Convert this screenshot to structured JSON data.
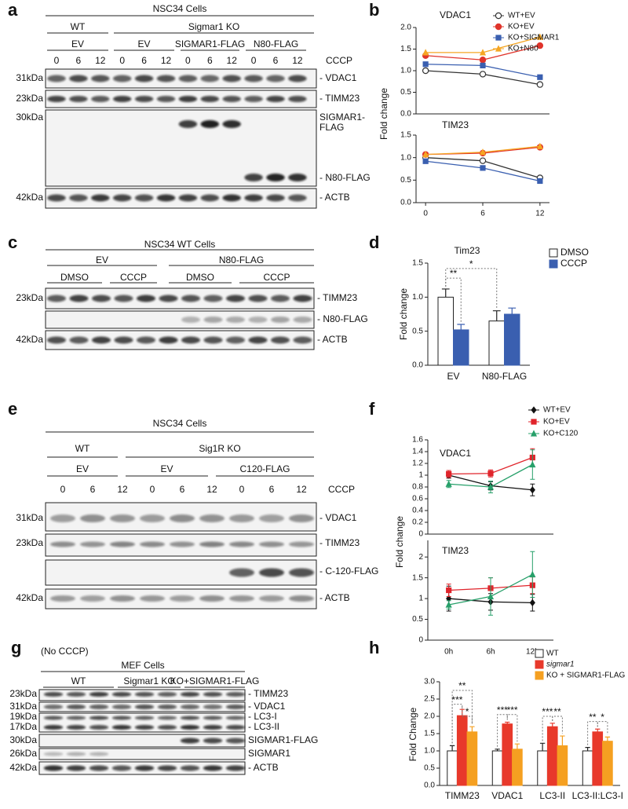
{
  "blots": [
    {
      "letter": "a",
      "title": "NSC34 Cells",
      "groups": [
        "WT",
        "Sigmar1 KO"
      ],
      "subgroups": [
        "EV",
        "EV",
        "SIGMAR1-FLAG",
        "N80-FLAG"
      ],
      "lanes": [
        "0",
        "6",
        "12",
        "0",
        "6",
        "12",
        "0",
        "6",
        "12",
        "0",
        "6",
        "12"
      ],
      "treatment": "CCCP",
      "markers": [
        "31kDa",
        "23kDa",
        "30kDa",
        "42kDa"
      ],
      "proteins": [
        "- VDAC1",
        "- TIMM23",
        "SIGMAR1-",
        "FLAG",
        "- N80-FLAG",
        "- ACTB"
      ]
    },
    {
      "letter": "c",
      "title": "NSC34 WT Cells",
      "groups": [
        "EV",
        "N80-FLAG"
      ],
      "subgroups": [
        "DMSO",
        "CCCP",
        "DMSO",
        "CCCP"
      ],
      "markers": [
        "23kDa",
        "42kDa"
      ],
      "proteins": [
        "- TIMM23",
        "- N80-FLAG",
        "- ACTB"
      ]
    },
    {
      "letter": "e",
      "title": "NSC34 Cells",
      "groups": [
        "WT",
        "Sig1R KO"
      ],
      "subgroups": [
        "EV",
        "EV",
        "C120-FLAG"
      ],
      "lanes": [
        "0",
        "6",
        "12",
        "0",
        "6",
        "12",
        "0",
        "6",
        "12"
      ],
      "treatment": "CCCP",
      "markers": [
        "31kDa",
        "23kDa",
        "42kDa"
      ],
      "proteins": [
        "- VDAC1",
        "- TIMM23",
        "- C-120-FLAG",
        "- ACTB"
      ]
    },
    {
      "letter": "g",
      "note": "(No CCCP)",
      "title": "MEF Cells",
      "subgroups": [
        "WT",
        "Sigmar1 KO",
        "KO+SIGMAR1-FLAG"
      ],
      "markers": [
        "23kDa",
        "31kDa",
        "19kDa",
        "17kDa",
        "30kDa",
        "26kDa",
        "42kDa"
      ],
      "proteins": [
        "- TIMM23",
        "- VDAC1",
        "- LC3-I",
        "- LC3-II",
        "SIGMAR1-FLAG",
        "SIGMAR1",
        "- ACTB"
      ]
    }
  ],
  "chart_data": [
    {
      "type": "line",
      "panel": "b",
      "title": "VDAC1",
      "y_label": "Fold change",
      "x": [
        0,
        6,
        12
      ],
      "xlim": [
        -1,
        13
      ],
      "ylim": [
        0,
        2
      ],
      "yticks": [
        {
          "value": 0,
          "label": "0.0"
        },
        0.5,
        {
          "value": 1,
          "label": "1.0"
        },
        1.5,
        {
          "value": 2,
          "label": "2.0"
        }
      ],
      "series": [
        {
          "name": "WT+EV",
          "color": "#333333",
          "marker": "circle-open",
          "values": [
            1.0,
            0.92,
            0.68
          ]
        },
        {
          "name": "KO+EV",
          "color": "#e0342b",
          "marker": "circle",
          "values": [
            1.35,
            1.25,
            1.58
          ]
        },
        {
          "name": "KO+SIGMAR1",
          "color": "#3a5fb0",
          "marker": "square",
          "values": [
            1.15,
            1.12,
            0.85
          ]
        },
        {
          "name": "KO+N80",
          "color": "#f5a623",
          "marker": "triangle",
          "values": [
            1.42,
            1.42,
            1.78
          ]
        }
      ]
    },
    {
      "type": "line",
      "title": "TIM23",
      "x": [
        0,
        6,
        12
      ],
      "xlim": [
        -1,
        13
      ],
      "xticks": [
        0,
        6,
        12
      ],
      "ylim": [
        0,
        1.5
      ],
      "yticks": [
        {
          "value": 0,
          "label": "0.0"
        },
        0.5,
        {
          "value": 1,
          "label": "1.0"
        },
        1.5
      ],
      "series": [
        {
          "color": "#333333",
          "marker": "circle-open",
          "values": [
            1.0,
            0.93,
            0.55
          ]
        },
        {
          "color": "#e0342b",
          "marker": "circle",
          "values": [
            1.07,
            1.1,
            1.23
          ]
        },
        {
          "color": "#3a5fb0",
          "marker": "square",
          "values": [
            0.92,
            0.77,
            0.48
          ]
        },
        {
          "color": "#f5a623",
          "marker": "triangle",
          "values": [
            1.07,
            1.12,
            1.25
          ]
        }
      ]
    },
    {
      "type": "bar",
      "panel": "d",
      "title": "Tim23",
      "y_label": "Fold change",
      "categories": [
        "EV",
        "N80-FLAG"
      ],
      "ylim": [
        0,
        1.5
      ],
      "yticks": [
        {
          "value": 0,
          "label": "0.0"
        },
        0.5,
        {
          "value": 1,
          "label": "1.0"
        },
        1.5
      ],
      "series": [
        {
          "name": "DMSO",
          "color": "#ffffff",
          "values": [
            1.0,
            0.65
          ],
          "errors": [
            0.12,
            0.15
          ]
        },
        {
          "name": "CCCP",
          "color": "#3a5fb0",
          "values": [
            0.52,
            0.75
          ],
          "errors": [
            0.08,
            0.09
          ]
        }
      ],
      "annotations": [
        "**",
        "*"
      ]
    },
    {
      "type": "line",
      "panel": "f",
      "title": "VDAC1",
      "y_label": "Fold change",
      "ylim": [
        0,
        1.6
      ],
      "yticks": [
        0,
        0.2,
        0.4,
        0.6,
        0.8,
        1,
        1.2,
        1.4,
        1.6
      ],
      "series": [
        {
          "name": "WT+EV",
          "color": "#111111",
          "marker": "diamond",
          "values": [
            1.0,
            0.82,
            0.75
          ],
          "errors": [
            0.05,
            0.07,
            0.1
          ]
        },
        {
          "name": "KO+EV",
          "color": "#e0242b",
          "marker": "square",
          "values": [
            1.02,
            1.03,
            1.3
          ],
          "errors": [
            0.06,
            0.06,
            0.15
          ]
        },
        {
          "name": "KO+C120",
          "color": "#27a06a",
          "marker": "triangle",
          "values": [
            0.85,
            0.8,
            1.18
          ],
          "errors": [
            0.06,
            0.1,
            0.25
          ]
        }
      ]
    },
    {
      "type": "line",
      "title": "TIM23",
      "categories": [
        "0h",
        "6h",
        "12h"
      ],
      "ylim": [
        0,
        2.4
      ],
      "yticks": [
        0,
        0.5,
        1,
        1.5,
        2
      ],
      "series": [
        {
          "color": "#111111",
          "marker": "diamond",
          "values": [
            1.0,
            0.92,
            0.9
          ],
          "errors": [
            0.3,
            0.2,
            0.2
          ]
        },
        {
          "color": "#e0242b",
          "marker": "square",
          "values": [
            1.2,
            1.25,
            1.32
          ],
          "errors": [
            0.15,
            0.25,
            0.2
          ]
        },
        {
          "color": "#27a06a",
          "marker": "triangle",
          "values": [
            0.85,
            1.05,
            1.58
          ],
          "errors": [
            0.1,
            0.45,
            0.55
          ]
        }
      ]
    },
    {
      "type": "bar",
      "panel": "h",
      "y_label": "Fold Change",
      "categories": [
        "TIMM23",
        "VDAC1",
        "LC3-II",
        "LC3-II:LC3-I"
      ],
      "ylim": [
        0,
        3
      ],
      "yticks": [
        {
          "value": 0,
          "label": "0.0"
        },
        0.5,
        {
          "value": 1,
          "label": "1.0"
        },
        1.5,
        {
          "value": 2,
          "label": "2.0"
        },
        2.5,
        {
          "value": 3,
          "label": "3.0"
        }
      ],
      "series": [
        {
          "name": "WT",
          "color": "#ffffff",
          "values": [
            1,
            1,
            1,
            1
          ],
          "errors": [
            0.15,
            0.05,
            0.22,
            0.1
          ]
        },
        {
          "name": "sigmar1",
          "color": "#e8392b",
          "values": [
            2.02,
            1.78,
            1.7,
            1.55
          ],
          "errors": [
            0.18,
            0.05,
            0.1,
            0.08
          ]
        },
        {
          "name": "KO + SIGMAR1-FLAG",
          "color": "#f5a021",
          "values": [
            1.55,
            1.05,
            1.15,
            1.28
          ],
          "errors": [
            0.15,
            0.15,
            0.28,
            0.12
          ]
        }
      ],
      "annotations": [
        "**",
        "***",
        "*",
        "***",
        "***",
        "***",
        "**",
        "**",
        "*"
      ]
    }
  ]
}
